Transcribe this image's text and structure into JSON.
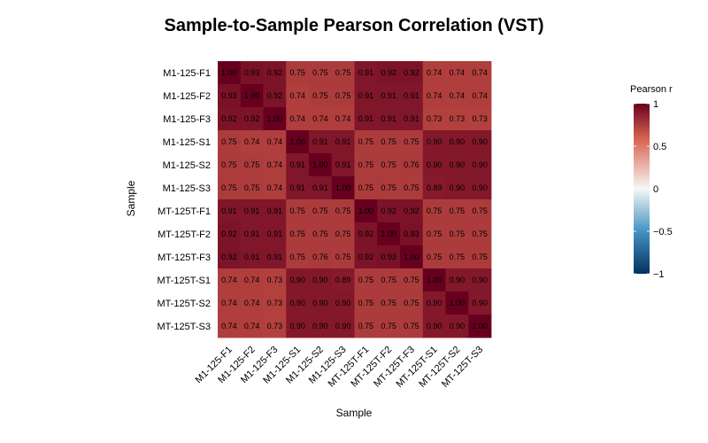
{
  "chart_data": {
    "type": "heatmap",
    "title": "Sample-to-Sample Pearson Correlation (VST)",
    "xlabel": "Sample",
    "ylabel": "Sample",
    "rows": [
      "M1-125-F1",
      "M1-125-F2",
      "M1-125-F3",
      "M1-125-S1",
      "M1-125-S2",
      "M1-125-S3",
      "MT-125T-F1",
      "MT-125T-F2",
      "MT-125T-F3",
      "MT-125T-S1",
      "MT-125T-S2",
      "MT-125T-S3"
    ],
    "columns": [
      "M1-125-F1",
      "M1-125-F2",
      "M1-125-F3",
      "M1-125-S1",
      "M1-125-S2",
      "M1-125-S3",
      "MT-125T-F1",
      "MT-125T-F2",
      "MT-125T-F3",
      "MT-125T-S1",
      "MT-125T-S2",
      "MT-125T-S3"
    ],
    "values": [
      [
        1.0,
        0.93,
        0.92,
        0.75,
        0.75,
        0.75,
        0.91,
        0.92,
        0.92,
        0.74,
        0.74,
        0.74
      ],
      [
        0.93,
        1.0,
        0.92,
        0.74,
        0.75,
        0.75,
        0.91,
        0.91,
        0.91,
        0.74,
        0.74,
        0.74
      ],
      [
        0.92,
        0.92,
        1.0,
        0.74,
        0.74,
        0.74,
        0.91,
        0.91,
        0.91,
        0.73,
        0.73,
        0.73
      ],
      [
        0.75,
        0.74,
        0.74,
        1.0,
        0.91,
        0.91,
        0.75,
        0.75,
        0.75,
        0.9,
        0.9,
        0.9
      ],
      [
        0.75,
        0.75,
        0.74,
        0.91,
        1.0,
        0.91,
        0.75,
        0.75,
        0.76,
        0.9,
        0.9,
        0.9
      ],
      [
        0.75,
        0.75,
        0.74,
        0.91,
        0.91,
        1.0,
        0.75,
        0.75,
        0.75,
        0.89,
        0.9,
        0.9
      ],
      [
        0.91,
        0.91,
        0.91,
        0.75,
        0.75,
        0.75,
        1.0,
        0.92,
        0.92,
        0.75,
        0.75,
        0.75
      ],
      [
        0.92,
        0.91,
        0.91,
        0.75,
        0.75,
        0.75,
        0.92,
        1.0,
        0.93,
        0.75,
        0.75,
        0.75
      ],
      [
        0.92,
        0.91,
        0.91,
        0.75,
        0.76,
        0.75,
        0.92,
        0.93,
        1.0,
        0.75,
        0.75,
        0.75
      ],
      [
        0.74,
        0.74,
        0.73,
        0.9,
        0.9,
        0.89,
        0.75,
        0.75,
        0.75,
        1.0,
        0.9,
        0.9
      ],
      [
        0.74,
        0.74,
        0.73,
        0.9,
        0.9,
        0.9,
        0.75,
        0.75,
        0.75,
        0.9,
        1.0,
        0.9
      ],
      [
        0.74,
        0.74,
        0.73,
        0.9,
        0.9,
        0.9,
        0.75,
        0.75,
        0.75,
        0.9,
        0.9,
        1.0
      ]
    ],
    "value_labels_format": "2dp",
    "color_scale": {
      "title": "Pearson r",
      "min": -1,
      "max": 1,
      "ticks": [
        {
          "value": 1,
          "label": "1"
        },
        {
          "value": 0.5,
          "label": "0.5"
        },
        {
          "value": 0,
          "label": "0"
        },
        {
          "value": -0.5,
          "label": "−0.5"
        },
        {
          "value": -1,
          "label": "−1"
        }
      ],
      "low_color": "#053061",
      "mid_low_color": "#4393c3",
      "mid_color": "#f7f7f7",
      "mid_high_color": "#d6604d",
      "high_color": "#67001f"
    },
    "grid": false,
    "legend_position": "right"
  }
}
